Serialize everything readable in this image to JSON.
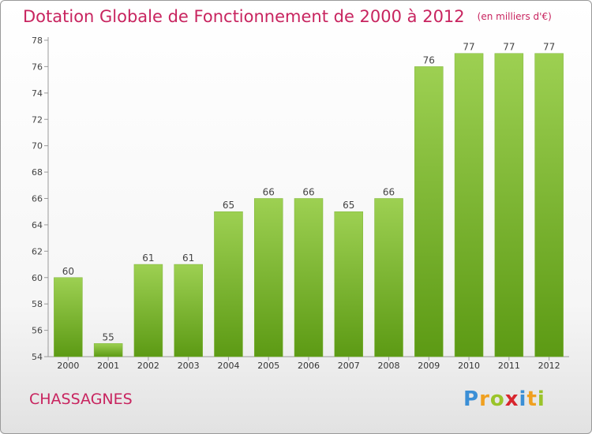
{
  "header": {
    "title": "Dotation Globale de Fonctionnement de 2000 à 2012",
    "unit": "(en milliers d'€)"
  },
  "commune": "CHASSAGNES",
  "logo": {
    "text": "Proxiti",
    "letter_colors": [
      "#3b8fd6",
      "#f0a020",
      "#9ac42a",
      "#d8262e",
      "#3b8fd6",
      "#f0a020",
      "#9ac42a"
    ]
  },
  "colors": {
    "title": "#c8245f",
    "bar_light": "#9dd052",
    "bar_dark": "#5c9a14"
  },
  "chart_data": {
    "type": "bar",
    "title": "Dotation Globale de Fonctionnement de 2000 à 2012",
    "ylabel": "",
    "xlabel": "",
    "ylim": [
      54,
      78
    ],
    "yticks": [
      54,
      56,
      58,
      60,
      62,
      64,
      66,
      68,
      70,
      72,
      74,
      76,
      78
    ],
    "grid": false,
    "categories": [
      "2000",
      "2001",
      "2002",
      "2003",
      "2004",
      "2005",
      "2006",
      "2007",
      "2008",
      "2009",
      "2010",
      "2011",
      "2012"
    ],
    "values": [
      60,
      55,
      61,
      61,
      65,
      66,
      66,
      65,
      66,
      76,
      77,
      77,
      77
    ]
  }
}
